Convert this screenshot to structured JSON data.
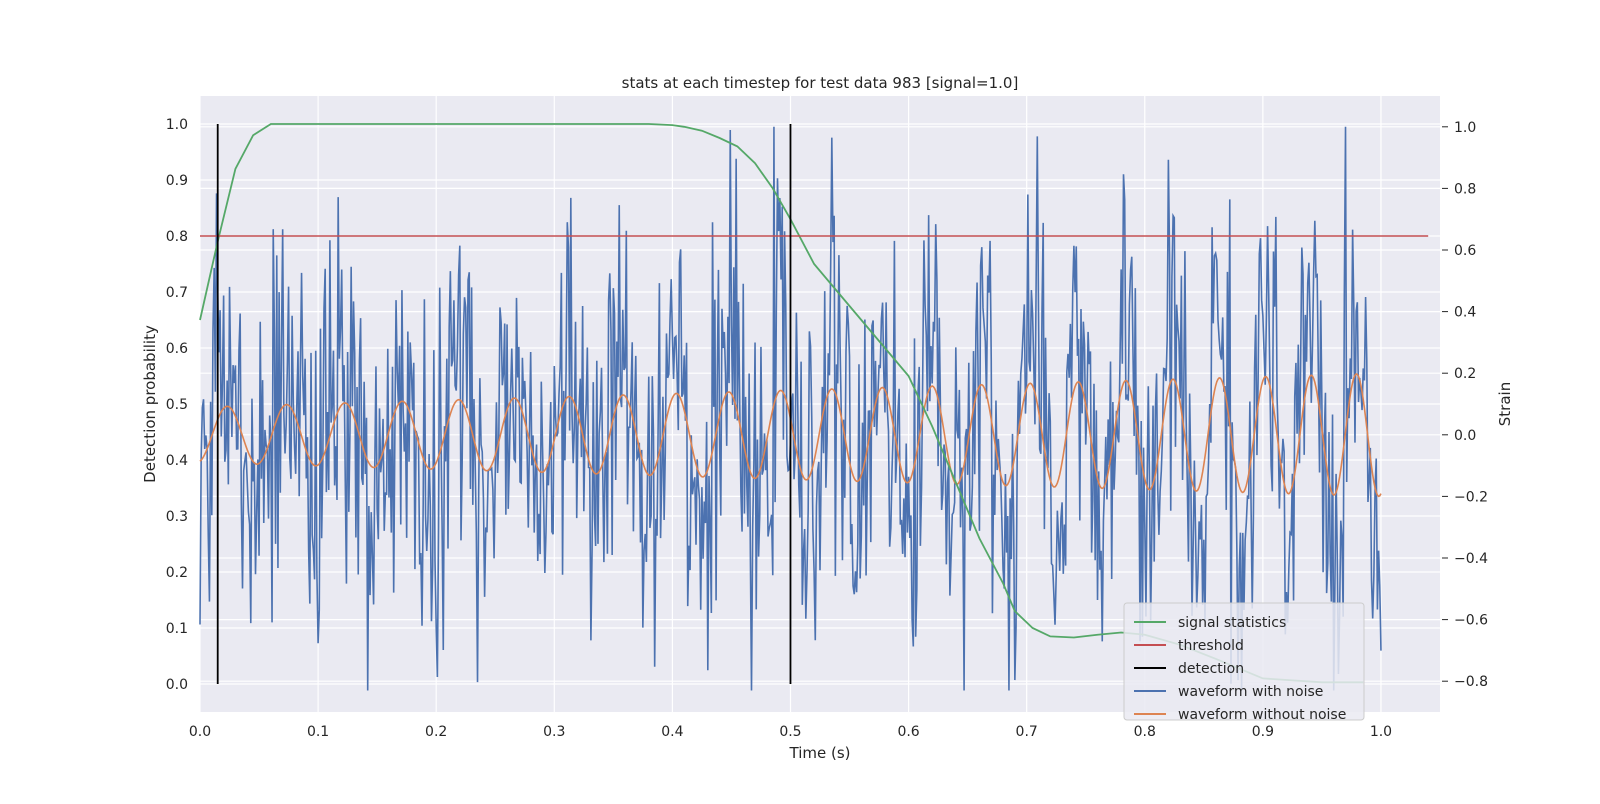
{
  "chart_data": {
    "type": "line",
    "title": "stats at each timestep for test data 983 [signal=1.0]",
    "xlabel": "Time (s)",
    "ylabel": "Detection probability",
    "ylabel_right": "Strain",
    "xlim": [
      0.0,
      1.05
    ],
    "ylim": [
      -0.05,
      1.05
    ],
    "ylim_right": [
      -0.9,
      1.1
    ],
    "x_ticks": [
      "0.0",
      "0.1",
      "0.2",
      "0.3",
      "0.4",
      "0.5",
      "0.6",
      "0.7",
      "0.8",
      "0.9",
      "1.0"
    ],
    "y_ticks": [
      "0.0",
      "0.1",
      "0.2",
      "0.3",
      "0.4",
      "0.5",
      "0.6",
      "0.7",
      "0.8",
      "0.9",
      "1.0"
    ],
    "y_ticks_right": [
      "−0.8",
      "−0.6",
      "−0.4",
      "−0.2",
      "0.0",
      "0.2",
      "0.4",
      "0.6",
      "0.8",
      "1.0"
    ],
    "grid": true,
    "legend_position": "lower-right",
    "legend": [
      {
        "name": "signal statistics",
        "color": "#55a868"
      },
      {
        "name": "threshold",
        "color": "#c44e52"
      },
      {
        "name": "detection",
        "color": "#000000"
      },
      {
        "name": "waveform with noise",
        "color": "#4c72b0"
      },
      {
        "name": "waveform without noise",
        "color": "#dd8452"
      }
    ],
    "signal_statistics": {
      "x": [
        0.0,
        0.015,
        0.03,
        0.045,
        0.06,
        0.08,
        0.1,
        0.2,
        0.3,
        0.38,
        0.4,
        0.41,
        0.425,
        0.44,
        0.455,
        0.47,
        0.485,
        0.5,
        0.52,
        0.54,
        0.56,
        0.58,
        0.6,
        0.62,
        0.64,
        0.66,
        0.68,
        0.69,
        0.705,
        0.72,
        0.74,
        0.76,
        0.78,
        0.8,
        0.83,
        0.86,
        0.9,
        0.95,
        0.985
      ],
      "y": [
        0.65,
        0.79,
        0.92,
        0.98,
        1.0,
        1.0,
        1.0,
        1.0,
        1.0,
        1.0,
        0.998,
        0.995,
        0.988,
        0.975,
        0.96,
        0.93,
        0.885,
        0.83,
        0.75,
        0.7,
        0.65,
        0.6,
        0.55,
        0.46,
        0.36,
        0.26,
        0.18,
        0.13,
        0.1,
        0.085,
        0.083,
        0.088,
        0.092,
        0.088,
        0.07,
        0.045,
        0.01,
        0.003,
        0.003
      ]
    },
    "threshold": {
      "y": 0.8,
      "x": [
        0.0,
        1.04
      ]
    },
    "detections": [
      {
        "x": 0.015,
        "y": [
          0.0,
          1.0
        ]
      },
      {
        "x": 0.5,
        "y": [
          0.0,
          1.0
        ]
      }
    ],
    "waveform_without_noise": {
      "axis": "right",
      "x_range": [
        0.0,
        1.0
      ],
      "amplitude_start": 0.09,
      "amplitude_end": 0.2,
      "cycles": 23,
      "chirp_rate": 0.35,
      "peaks_approx_x": [
        0.05,
        0.095,
        0.14,
        0.19,
        0.24,
        0.29,
        0.335,
        0.38,
        0.425,
        0.47,
        0.51,
        0.55,
        0.59,
        0.63,
        0.67,
        0.71,
        0.745,
        0.78,
        0.815,
        0.85,
        0.885,
        0.92,
        0.955,
        0.99
      ]
    },
    "waveform_with_noise": {
      "axis": "right",
      "x_range": [
        0.0,
        1.0
      ],
      "n_points": 1000,
      "noise_std": 0.27,
      "max": 1.0,
      "min": -0.83
    }
  }
}
